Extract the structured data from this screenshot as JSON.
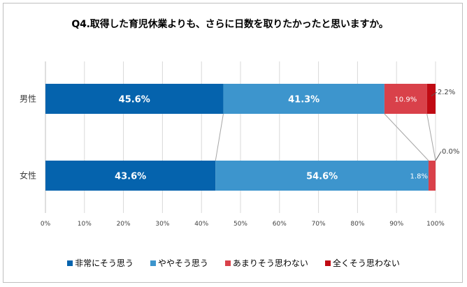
{
  "chart_data": {
    "type": "bar",
    "orientation": "horizontal",
    "stacked": true,
    "title": "Q4.取得した育児休業よりも、さらに日数を取りたかったと思いますか。",
    "categories": [
      "男性",
      "女性"
    ],
    "x_ticks": [
      "0%",
      "10%",
      "20%",
      "30%",
      "40%",
      "50%",
      "60%",
      "70%",
      "80%",
      "90%",
      "100%"
    ],
    "xlim": [
      0,
      100
    ],
    "grid": true,
    "legend_position": "bottom",
    "series": [
      {
        "name": "非常にそう思う",
        "color": "#0563ad",
        "values": [
          45.6,
          43.6
        ],
        "labels": [
          "45.6%",
          "43.6%"
        ]
      },
      {
        "name": "ややそう思う",
        "color": "#3d95cd",
        "values": [
          41.3,
          54.6
        ],
        "labels": [
          "41.3%",
          "54.6%"
        ]
      },
      {
        "name": "あまりそう思わない",
        "color": "#d9414a",
        "values": [
          10.9,
          1.8
        ],
        "labels": [
          "10.9%",
          "1.8%"
        ]
      },
      {
        "name": "全くそう思わない",
        "color": "#c00a13",
        "values": [
          2.2,
          0.0
        ],
        "labels": [
          "2.2%",
          "0.0%"
        ]
      }
    ]
  }
}
